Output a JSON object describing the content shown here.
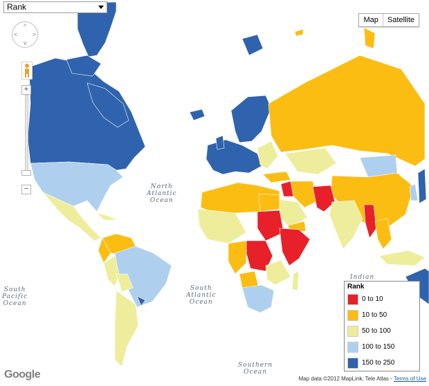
{
  "select": {
    "value": "Rank"
  },
  "map_type": {
    "map_label": "Map",
    "satellite_label": "Satellite"
  },
  "zoom": {
    "plus": "+",
    "minus": "−"
  },
  "oceans": {
    "north_atlantic": "North\nAtlantic\nOcean",
    "south_pacific": "South\nPacific\nOcean",
    "south_atlantic": "South\nAtlantic\nOcean",
    "southern": "Southern\nOcean",
    "indian": "Indian"
  },
  "legend": {
    "title": "Rank",
    "items": [
      {
        "label": "0 to 10",
        "color": "#e8202a"
      },
      {
        "label": "10 to 50",
        "color": "#fbbd12"
      },
      {
        "label": "50 to 100",
        "color": "#eeed9b"
      },
      {
        "label": "100 to 150",
        "color": "#aed0ee"
      },
      {
        "label": "150 to 250",
        "color": "#2f63ad"
      }
    ]
  },
  "footer": {
    "logo": "Google",
    "attribution": "Map data ©2012 MapLink, Tele Atlas - ",
    "terms": "Terms of Use"
  }
}
